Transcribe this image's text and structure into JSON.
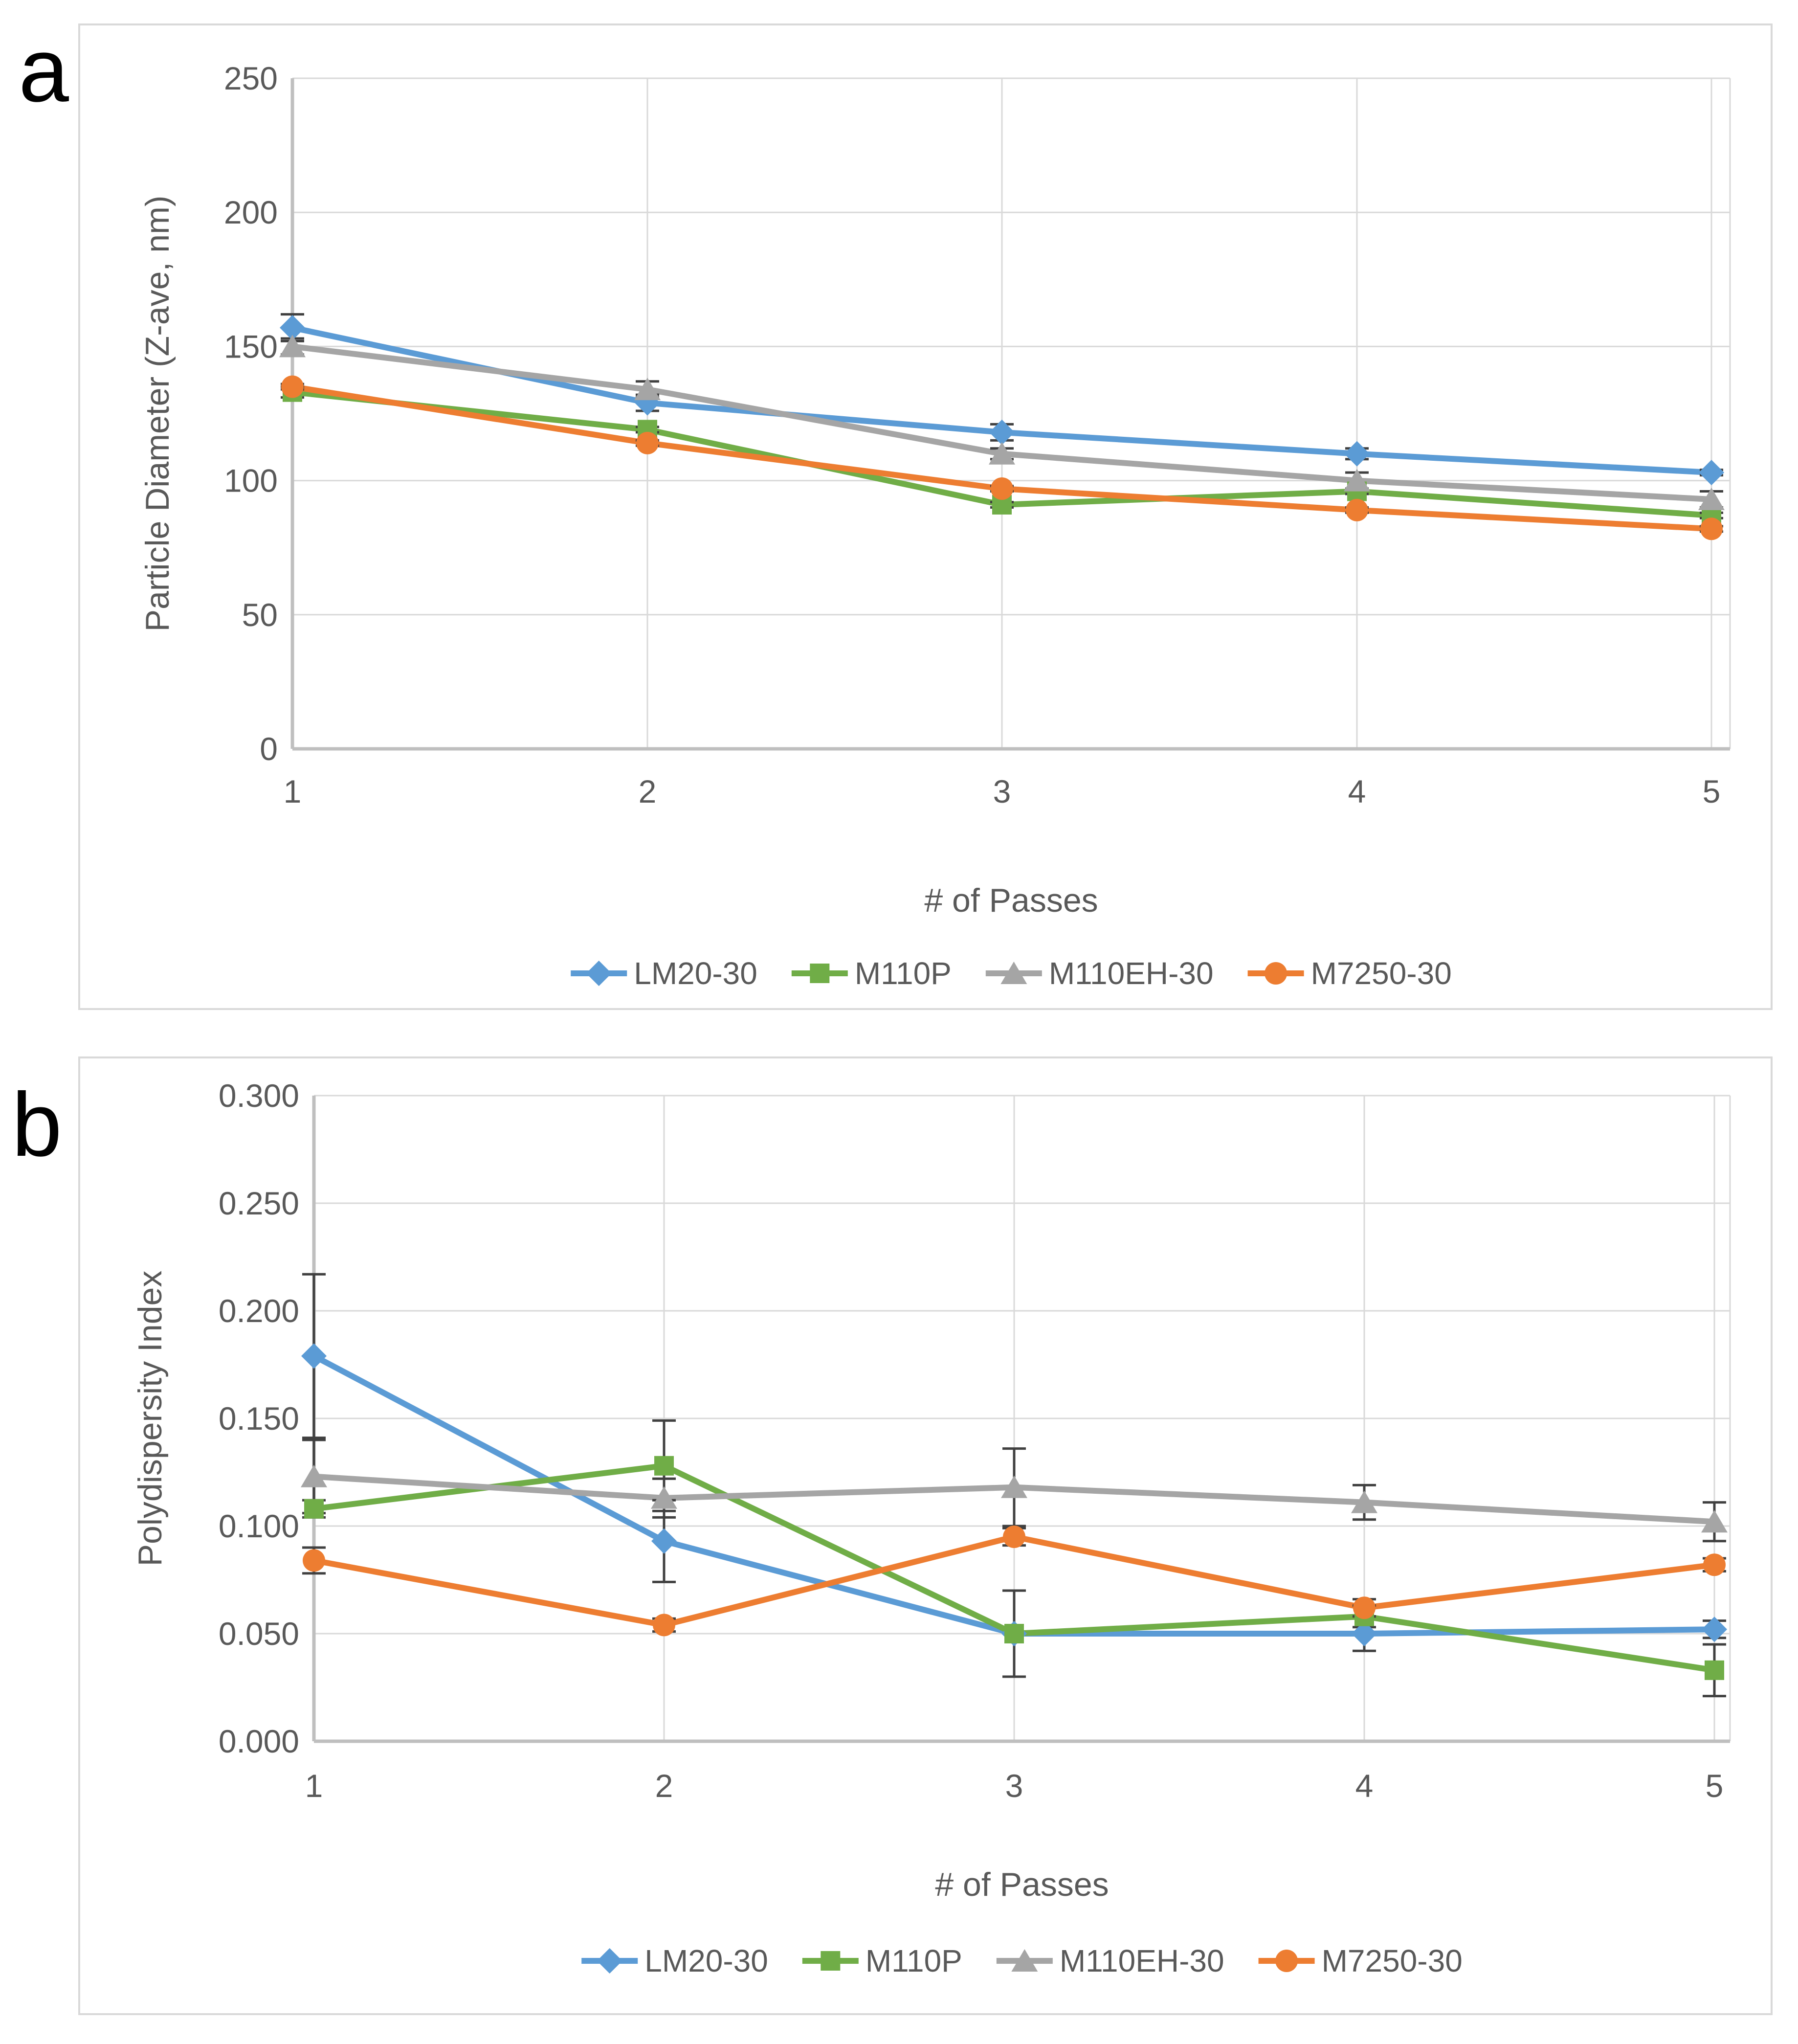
{
  "panels": [
    {
      "letter": "a"
    },
    {
      "letter": "b"
    }
  ],
  "style": {
    "background": "#FFFFFF",
    "panel_border_color": "#D9D9D9",
    "grid_color": "#D9D9D9",
    "axis_color": "#BFBFBF",
    "text_color": "#595959",
    "error_bar_color": "#404040"
  },
  "chart_data": [
    {
      "type": "line",
      "xlabel": "# of Passes",
      "ylabel": "Particle Diameter (Z-ave, nm)",
      "x": [
        1,
        2,
        3,
        4,
        5
      ],
      "xtick_labels": [
        "1",
        "2",
        "3",
        "4",
        "5"
      ],
      "ylim": [
        0,
        250
      ],
      "ytick_labels": [
        "0",
        "50",
        "100",
        "150",
        "200",
        "250"
      ],
      "grid": true,
      "legend_position": "bottom",
      "series": [
        {
          "name": "LM20-30",
          "color": "#5B9BD5",
          "marker": "diamond",
          "values": [
            157,
            129,
            118,
            110,
            103
          ],
          "errors": [
            5,
            3,
            3,
            2,
            1
          ]
        },
        {
          "name": "M110P",
          "color": "#70AD47",
          "marker": "square",
          "values": [
            133,
            119,
            91,
            96,
            87
          ],
          "errors": [
            2,
            1,
            1,
            1,
            1
          ]
        },
        {
          "name": "M110EH-30",
          "color": "#A5A5A5",
          "marker": "triangle",
          "values": [
            150,
            134,
            110,
            100,
            93
          ],
          "errors": [
            3,
            3,
            2,
            3,
            3
          ]
        },
        {
          "name": "M7250-30",
          "color": "#ED7D31",
          "marker": "circle",
          "values": [
            135,
            114,
            97,
            89,
            82
          ],
          "errors": [
            1,
            1,
            1,
            1,
            1
          ]
        }
      ]
    },
    {
      "type": "line",
      "xlabel": "# of Passes",
      "ylabel": "Polydispersity Index",
      "x": [
        1,
        2,
        3,
        4,
        5
      ],
      "xtick_labels": [
        "1",
        "2",
        "3",
        "4",
        "5"
      ],
      "ylim": [
        0,
        0.3
      ],
      "ytick_labels": [
        "0.000",
        "0.050",
        "0.100",
        "0.150",
        "0.200",
        "0.250",
        "0.300"
      ],
      "grid": true,
      "legend_position": "bottom",
      "series": [
        {
          "name": "LM20-30",
          "color": "#5B9BD5",
          "marker": "diamond",
          "values": [
            0.179,
            0.093,
            0.05,
            0.05,
            0.052
          ],
          "errors": [
            0.038,
            0.019,
            0.02,
            0.008,
            0.004
          ]
        },
        {
          "name": "M110P",
          "color": "#70AD47",
          "marker": "square",
          "values": [
            0.108,
            0.128,
            0.05,
            0.058,
            0.033
          ],
          "errors": [
            0.004,
            0.021,
            0.02,
            0.005,
            0.012
          ]
        },
        {
          "name": "M110EH-30",
          "color": "#A5A5A5",
          "marker": "triangle",
          "values": [
            0.123,
            0.113,
            0.118,
            0.111,
            0.102
          ],
          "errors": [
            0.017,
            0.009,
            0.018,
            0.008,
            0.009
          ]
        },
        {
          "name": "M7250-30",
          "color": "#ED7D31",
          "marker": "circle",
          "values": [
            0.084,
            0.054,
            0.095,
            0.062,
            0.082
          ],
          "errors": [
            0.006,
            0.003,
            0.004,
            0.004,
            0.003
          ]
        }
      ]
    }
  ]
}
